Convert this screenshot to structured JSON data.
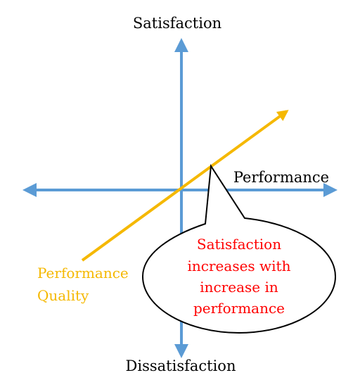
{
  "axes": {
    "top_label": "Satisfaction",
    "bottom_label": "Dissatisfaction",
    "right_label": "Performance",
    "axis_color": "#5b9bd5"
  },
  "line": {
    "label_line1": "Performance",
    "label_line2": "Quality",
    "color": "#f5b800"
  },
  "callout": {
    "lines": [
      "Satisfaction",
      "increases with",
      "increase in",
      "performance"
    ],
    "text_color": "#ff0000"
  }
}
